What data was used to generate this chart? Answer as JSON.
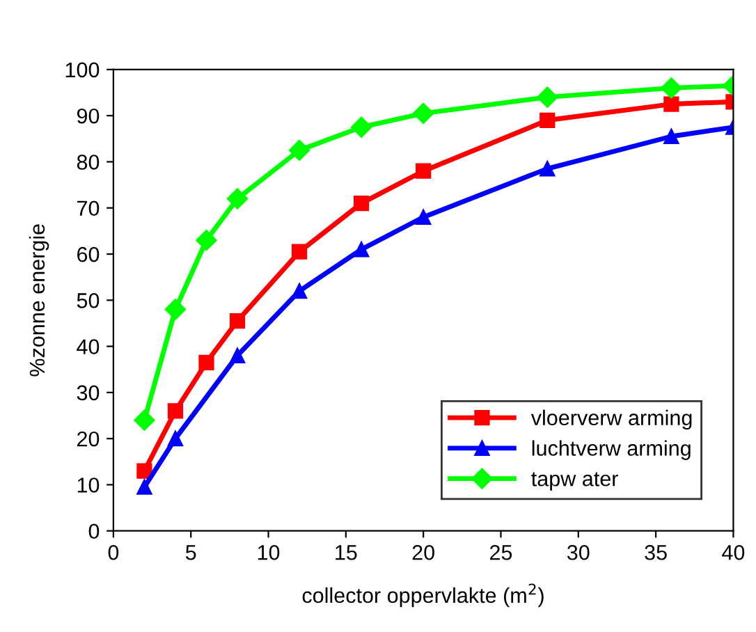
{
  "chart_data": {
    "type": "line",
    "xlabel": "collector oppervlakte (m$^{2}$)",
    "ylabel": "%zonne energie",
    "xlim": [
      0,
      40
    ],
    "xticks": [
      0,
      5,
      10,
      15,
      20,
      25,
      30,
      35,
      40
    ],
    "ylim": [
      0,
      100
    ],
    "yticks": [
      0,
      10,
      20,
      30,
      40,
      50,
      60,
      70,
      80,
      90,
      100
    ],
    "grid": false,
    "legend": "bottom right",
    "series": [
      {
        "name": "vloerverw arming",
        "color": "#ff0000",
        "marker": "square",
        "x": [
          2,
          4,
          6,
          8,
          12,
          16,
          20,
          28,
          36,
          40
        ],
        "values": [
          13,
          26,
          36.5,
          45.5,
          60.5,
          71,
          78,
          89,
          92.5,
          93
        ]
      },
      {
        "name": "luchtverw arming",
        "color": "#0000ff",
        "marker": "triangle",
        "x": [
          2,
          4,
          8,
          12,
          16,
          20,
          28,
          36,
          40
        ],
        "values": [
          9.5,
          20,
          38,
          52,
          61,
          68,
          78.5,
          85.5,
          87.5
        ]
      },
      {
        "name": "tapw ater",
        "color": "#00ff00",
        "marker": "diamond",
        "x": [
          2,
          4,
          6,
          8,
          12,
          16,
          20,
          28,
          36,
          40
        ],
        "values": [
          24,
          48,
          63,
          72,
          82.5,
          87.5,
          90.5,
          94,
          96,
          96.5
        ]
      }
    ]
  }
}
